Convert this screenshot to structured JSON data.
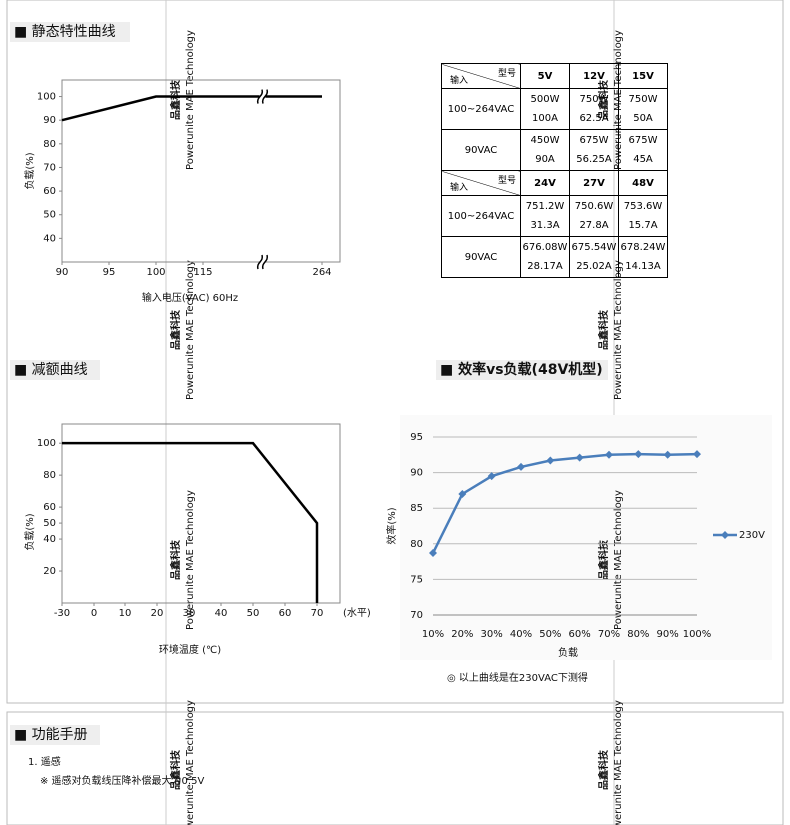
{
  "headings": [
    "■ 静态特性曲线",
    "■ 减额曲线",
    "■ 效率vs负载(48V机型)",
    "■ 功能手册"
  ],
  "note": "◎ 以上曲线是在230VAC下测得",
  "manual": {
    "item": "1. 遥感",
    "detail": "※ 遥感对负载线压降补偿最大为0.5V"
  },
  "watermark": {
    "cn": "品鑫科技",
    "en": "Powerunite MAE Technology"
  },
  "table": {
    "corner": {
      "top": "型号",
      "bottom": "输入"
    },
    "groups": [
      {
        "columns": [
          "5V",
          "12V",
          "15V"
        ],
        "rows": [
          {
            "input": "100~264VAC",
            "cells": [
              [
                "500W",
                "100A"
              ],
              [
                "750W",
                "62.5A"
              ],
              [
                "750W",
                "50A"
              ]
            ]
          },
          {
            "input": "90VAC",
            "cells": [
              [
                "450W",
                "90A"
              ],
              [
                "675W",
                "56.25A"
              ],
              [
                "675W",
                "45A"
              ]
            ]
          }
        ]
      },
      {
        "columns": [
          "24V",
          "27V",
          "48V"
        ],
        "rows": [
          {
            "input": "100~264VAC",
            "cells": [
              [
                "751.2W",
                "31.3A"
              ],
              [
                "750.6W",
                "27.8A"
              ],
              [
                "753.6W",
                "15.7A"
              ]
            ]
          },
          {
            "input": "90VAC",
            "cells": [
              [
                "676.08W",
                "28.17A"
              ],
              [
                "675.54W",
                "25.02A"
              ],
              [
                "678.24W",
                "14.13A"
              ]
            ]
          }
        ]
      }
    ]
  },
  "chart_data": [
    {
      "type": "line",
      "x_label": "输入电压(VAC) 60Hz",
      "y_label": "负载(%)",
      "x": [
        90,
        100,
        264
      ],
      "series": [
        {
          "color": "#000000",
          "values": [
            90,
            100,
            100
          ]
        }
      ],
      "xticks": [
        90,
        95,
        100,
        115,
        264
      ],
      "ylim": [
        30,
        107
      ],
      "yticks": [
        40,
        50,
        60,
        70,
        80,
        90,
        100
      ],
      "axis_break": true
    },
    {
      "type": "line",
      "x_label": "环境温度 (℃)",
      "x_unit": "(水平)",
      "y_label": "负载(%)",
      "x": [
        -30,
        50,
        70,
        70
      ],
      "series": [
        {
          "color": "#000000",
          "values": [
            100,
            100,
            50,
            0
          ]
        }
      ],
      "xticks": [
        -30,
        0,
        10,
        20,
        30,
        40,
        50,
        60,
        70
      ],
      "ylim": [
        0,
        112
      ],
      "yticks": [
        20,
        40,
        50,
        60,
        80,
        100
      ]
    },
    {
      "type": "category_line",
      "x_label": "负载",
      "y_label": "效率(%)",
      "categories": [
        "10%",
        "20%",
        "30%",
        "40%",
        "50%",
        "60%",
        "70%",
        "80%",
        "90%",
        "100%"
      ],
      "series": [
        {
          "name": "230V",
          "color": "#4a7ebb",
          "values": [
            78.7,
            87,
            89.5,
            90.8,
            91.7,
            92.1,
            92.5,
            92.6,
            92.5,
            92.6
          ]
        }
      ],
      "ylim": [
        70,
        95
      ],
      "yticks": [
        70,
        75,
        80,
        85,
        90,
        95
      ],
      "grid": true,
      "legend": "right",
      "marker": "diamond"
    }
  ]
}
